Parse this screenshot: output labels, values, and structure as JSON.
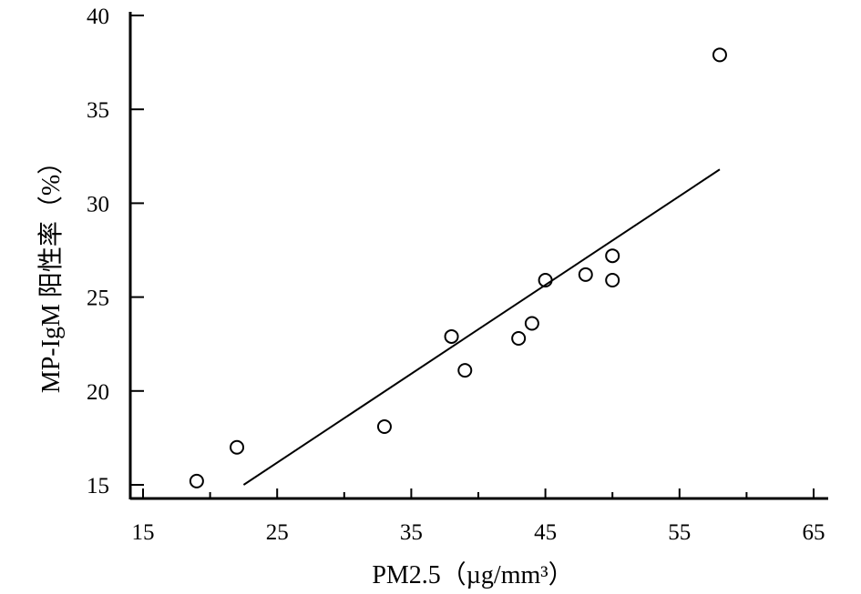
{
  "chart_data": {
    "type": "scatter",
    "title": "",
    "xlabel": "PM2.5（µg/mm³）",
    "ylabel": "MP-IgM 阳性率（%）",
    "xlim": [
      15,
      65
    ],
    "ylim": [
      15,
      40
    ],
    "x_ticks": [
      15,
      25,
      35,
      45,
      55,
      65
    ],
    "x_tick_labels": [
      "15",
      "25",
      "35",
      "45",
      "55",
      "65"
    ],
    "y_ticks": [
      15,
      20,
      25,
      30,
      35,
      40
    ],
    "y_tick_labels": [
      "15",
      "20",
      "25",
      "30",
      "35",
      "40"
    ],
    "grid": false,
    "series": [
      {
        "marker": "open-circle",
        "points": [
          {
            "x": 19,
            "y": 15.2
          },
          {
            "x": 22,
            "y": 17.0
          },
          {
            "x": 33,
            "y": 18.1
          },
          {
            "x": 38,
            "y": 22.9
          },
          {
            "x": 39,
            "y": 21.1
          },
          {
            "x": 43,
            "y": 22.8
          },
          {
            "x": 44,
            "y": 23.6
          },
          {
            "x": 45,
            "y": 25.9
          },
          {
            "x": 48,
            "y": 26.2
          },
          {
            "x": 50,
            "y": 27.2
          },
          {
            "x": 50,
            "y": 25.9
          },
          {
            "x": 58,
            "y": 37.9
          }
        ]
      }
    ],
    "trendline": {
      "x": [
        22.5,
        58
      ],
      "y": [
        15.0,
        31.8
      ]
    },
    "colors": {
      "ink": "#000000",
      "background": "#ffffff"
    }
  }
}
